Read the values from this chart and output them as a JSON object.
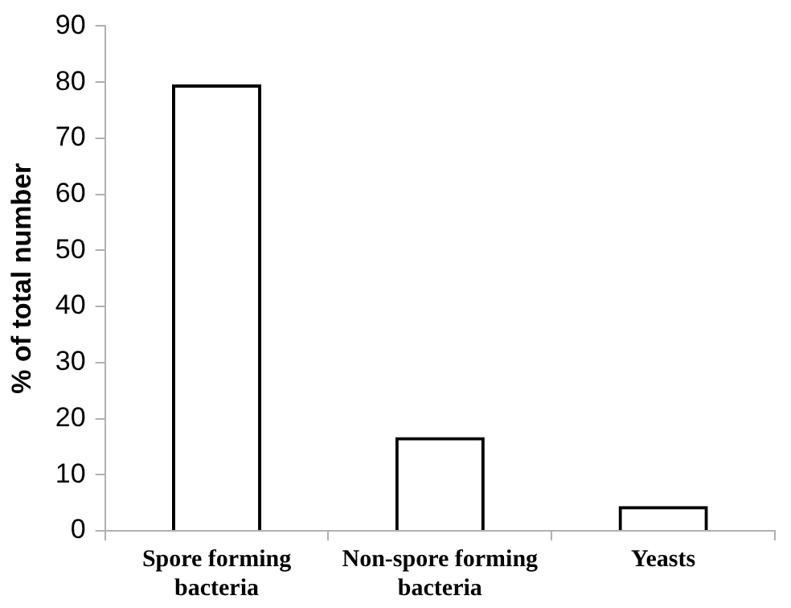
{
  "chart_data": {
    "type": "bar",
    "ylabel": "% of total number",
    "categories": [
      "Spore forming bacteria",
      "Non-spore forming bacteria",
      "Yeasts"
    ],
    "series": [
      {
        "color": "#000000",
        "values": [
          79.6,
          16.7,
          4.4
        ]
      }
    ],
    "ylim": [
      0,
      90
    ],
    "yticks": [
      0,
      10,
      20,
      30,
      40,
      50,
      60,
      70,
      80,
      90
    ],
    "grid": false,
    "legend": false
  }
}
